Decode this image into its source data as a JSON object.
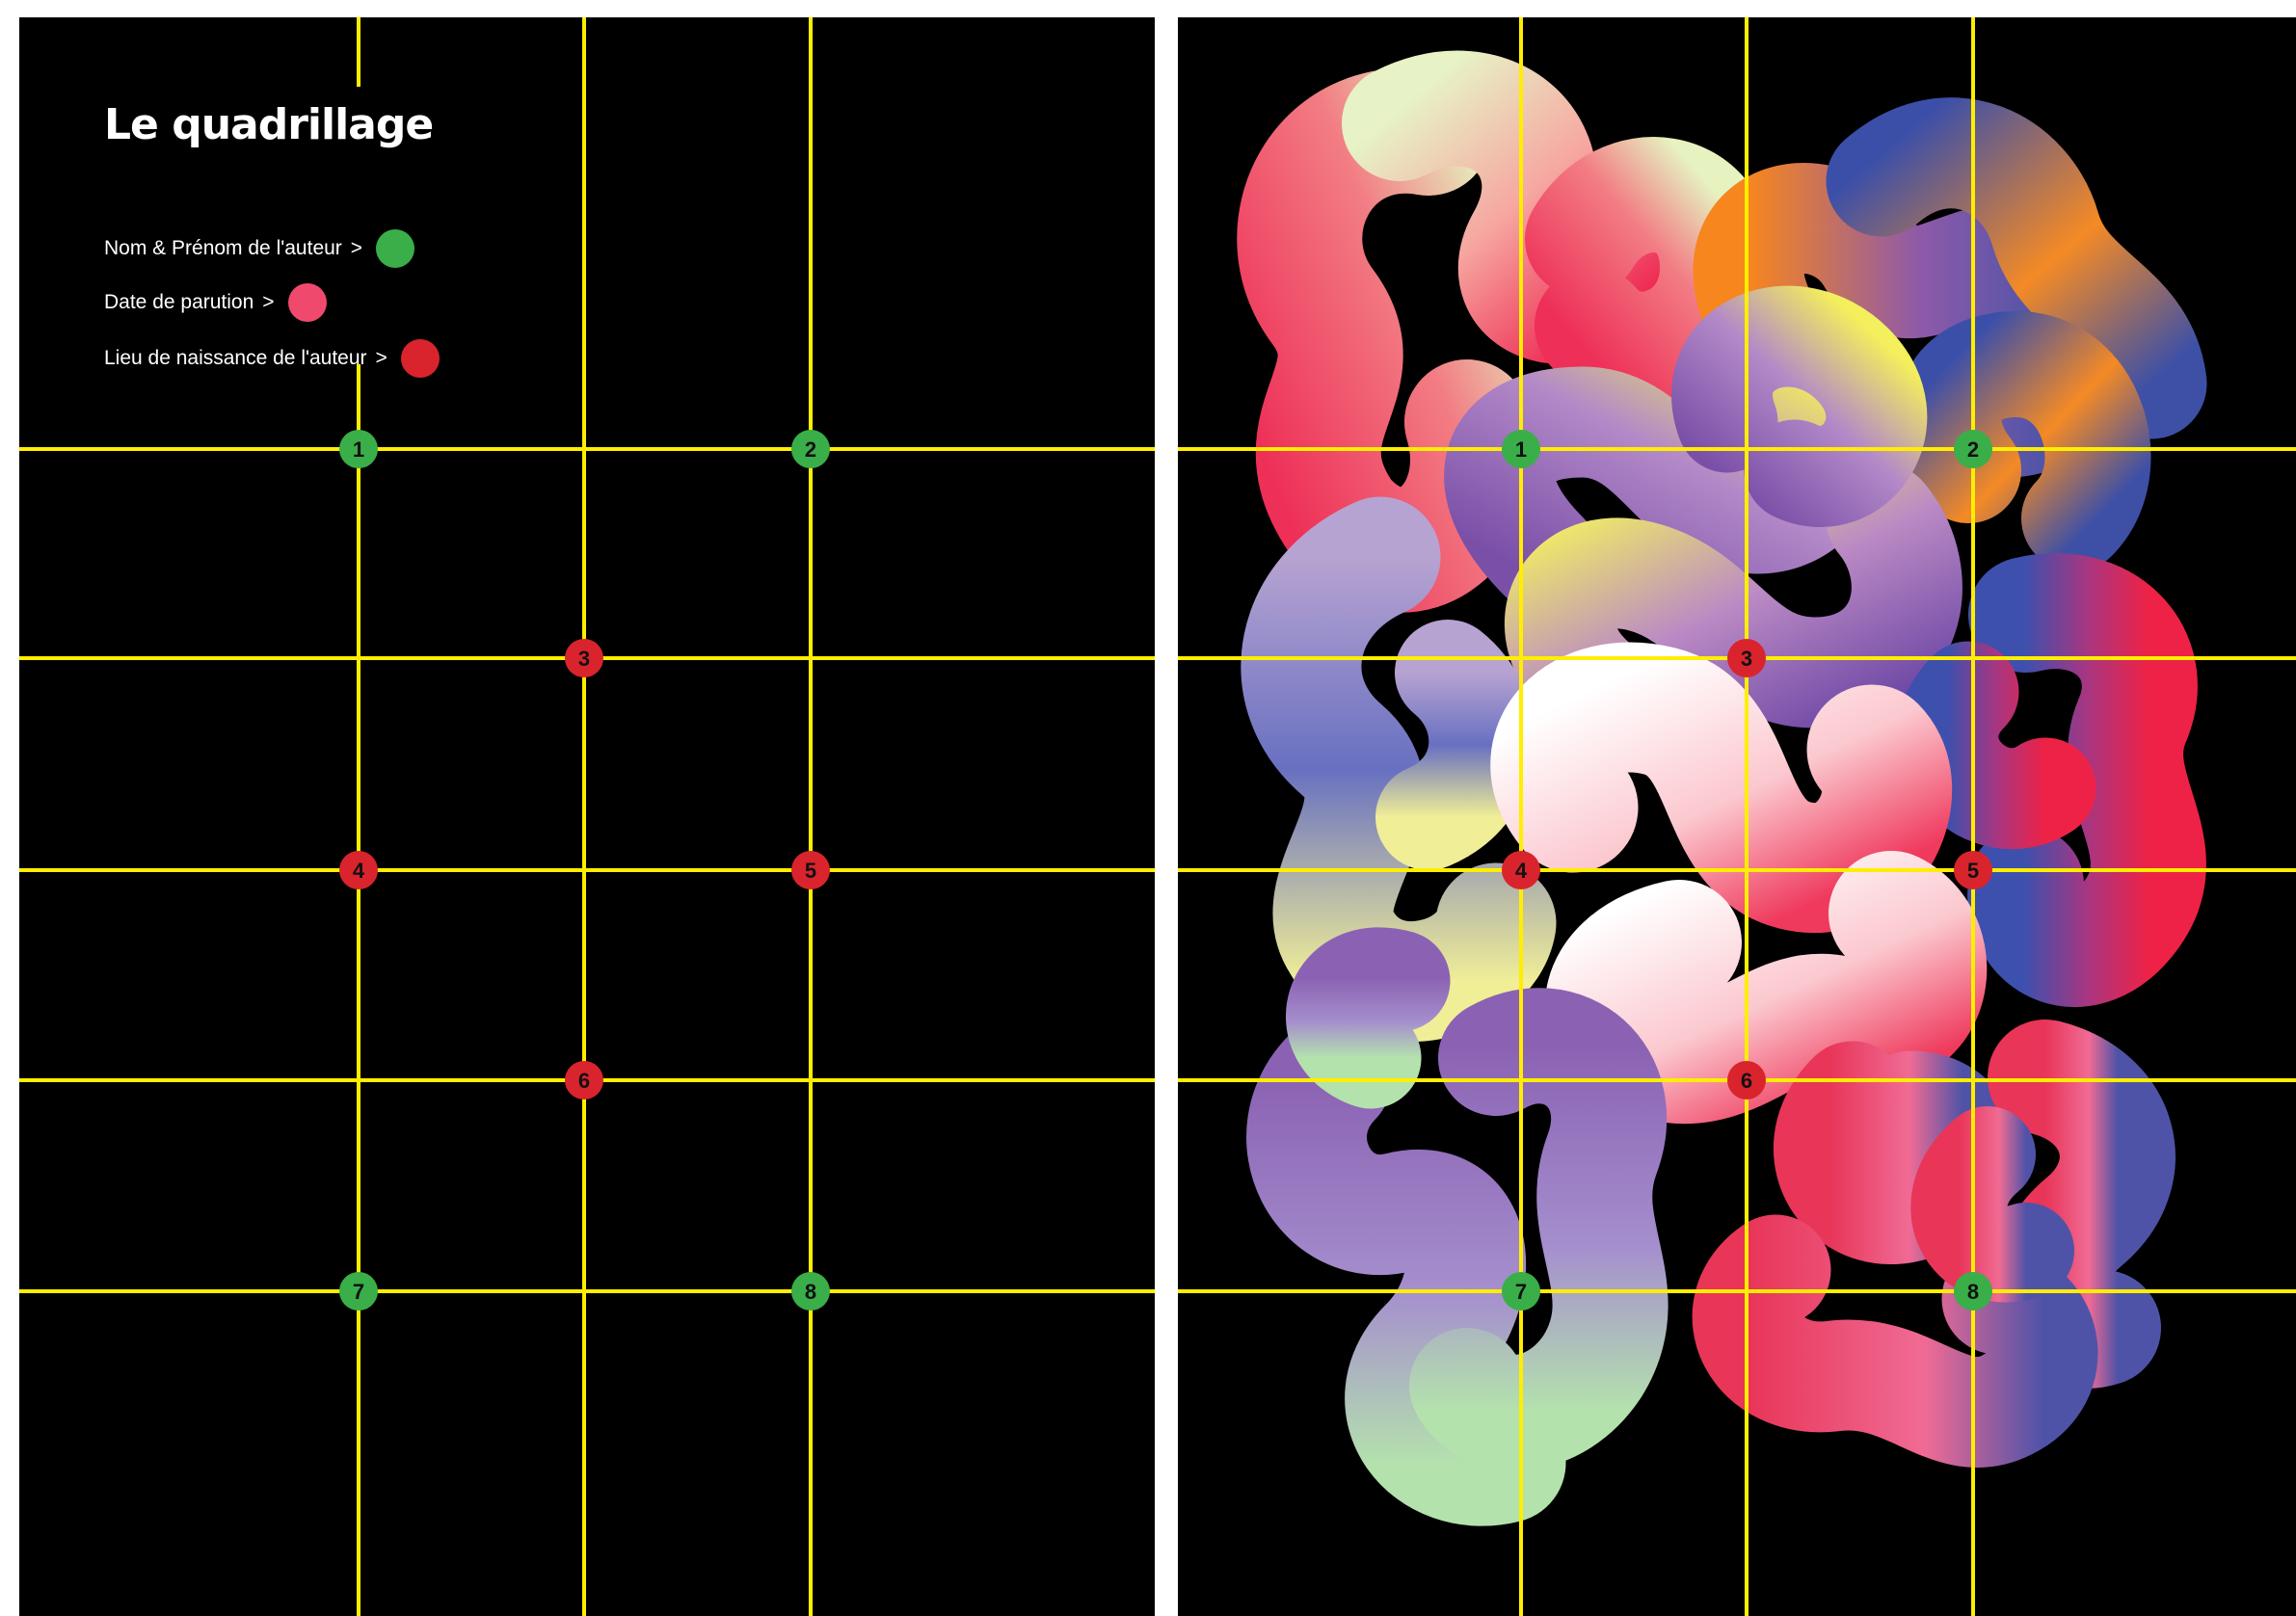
{
  "title": "Le quadrillage",
  "legend": [
    {
      "label": "Nom & Prénom de l'auteur",
      "arrow": ">",
      "color": "#3aae49",
      "icon": "green-dot"
    },
    {
      "label": "Date de parution",
      "arrow": ">",
      "color": "#ef4a6e",
      "icon": "pink-dot"
    },
    {
      "label": "Lieu de naissance de l'auteur",
      "arrow": ">",
      "color": "#d9242d",
      "icon": "red-dot"
    }
  ],
  "grid": {
    "line_color": "#ffee00",
    "marker_colors": {
      "author": "#3aae49",
      "birthplace": "#d9242d"
    },
    "markers": [
      {
        "number": "1",
        "type": "author"
      },
      {
        "number": "2",
        "type": "author"
      },
      {
        "number": "3",
        "type": "birthplace"
      },
      {
        "number": "4",
        "type": "birthplace"
      },
      {
        "number": "5",
        "type": "birthplace"
      },
      {
        "number": "6",
        "type": "birthplace"
      },
      {
        "number": "7",
        "type": "author"
      },
      {
        "number": "8",
        "type": "author"
      }
    ]
  }
}
